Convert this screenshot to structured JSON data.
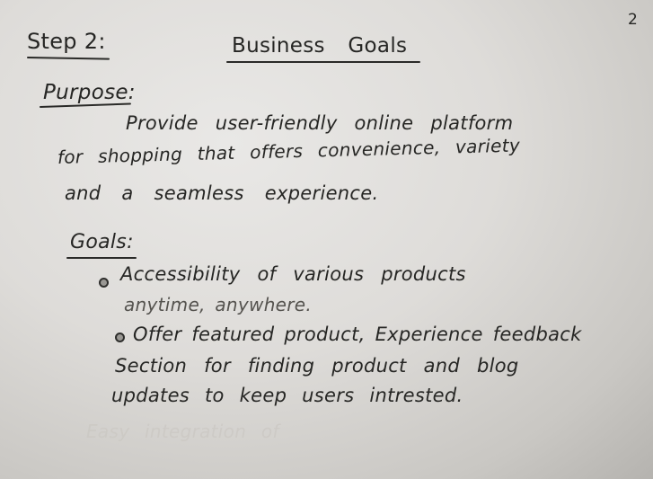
{
  "page_number": "2",
  "header": {
    "step": "Step 2:",
    "title": "Business Goals"
  },
  "purpose": {
    "heading": "Purpose:",
    "lines": [
      "Provide user-friendly online platform",
      "for shopping that offers convenience, variety",
      "and a seamless experience."
    ]
  },
  "goals": {
    "heading": "Goals:",
    "items": [
      {
        "lines": [
          "Accessibility of various products",
          "anytime, anywhere."
        ]
      },
      {
        "lines": [
          "Offer featured product, Experience feedback",
          "Section for finding product and blog",
          "updates to keep users intrested."
        ]
      }
    ],
    "faint_text": "Easy integration of"
  }
}
